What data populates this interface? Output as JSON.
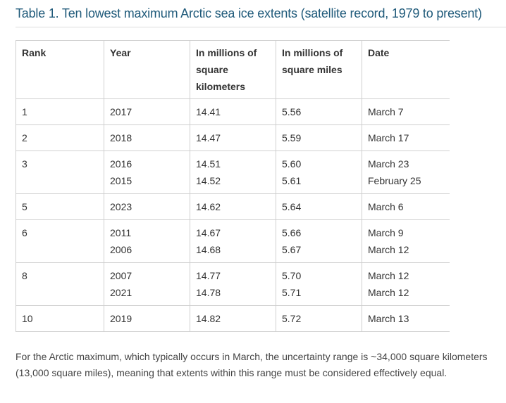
{
  "caption": "Table 1. Ten lowest maximum Arctic sea ice extents (satellite record, 1979 to present)",
  "table": {
    "headers": {
      "rank": "Rank",
      "year": "Year",
      "km": "In millions of square kilometers",
      "mi": "In millions of square miles",
      "date": "Date"
    },
    "rows": [
      {
        "rank": "1",
        "year": [
          "2017"
        ],
        "km": [
          "14.41"
        ],
        "mi": [
          "5.56"
        ],
        "date": [
          "March 7"
        ]
      },
      {
        "rank": "2",
        "year": [
          "2018"
        ],
        "km": [
          "14.47"
        ],
        "mi": [
          "5.59"
        ],
        "date": [
          "March 17"
        ]
      },
      {
        "rank": "3",
        "year": [
          "2016",
          "2015"
        ],
        "km": [
          "14.51",
          "14.52"
        ],
        "mi": [
          "5.60",
          "5.61"
        ],
        "date": [
          "March 23",
          "February 25"
        ]
      },
      {
        "rank": "5",
        "year": [
          "2023"
        ],
        "km": [
          "14.62"
        ],
        "mi": [
          "5.64"
        ],
        "date": [
          "March 6"
        ]
      },
      {
        "rank": "6",
        "year": [
          "2011",
          "2006"
        ],
        "km": [
          "14.67",
          "14.68"
        ],
        "mi": [
          "5.66",
          "5.67"
        ],
        "date": [
          "March 9",
          "March 12"
        ]
      },
      {
        "rank": "8",
        "year": [
          "2007",
          "2021"
        ],
        "km": [
          "14.77",
          "14.78"
        ],
        "mi": [
          "5.70",
          "5.71"
        ],
        "date": [
          "March 12",
          "March 12"
        ]
      },
      {
        "rank": "10",
        "year": [
          "2019"
        ],
        "km": [
          "14.82"
        ],
        "mi": [
          "5.72"
        ],
        "date": [
          "March 13"
        ]
      }
    ]
  },
  "note": "For the Arctic maximum, which typically occurs in March, the uncertainty range is ~34,000 square kilometers (13,000 square miles), meaning that extents within this range must be considered effectively equal."
}
